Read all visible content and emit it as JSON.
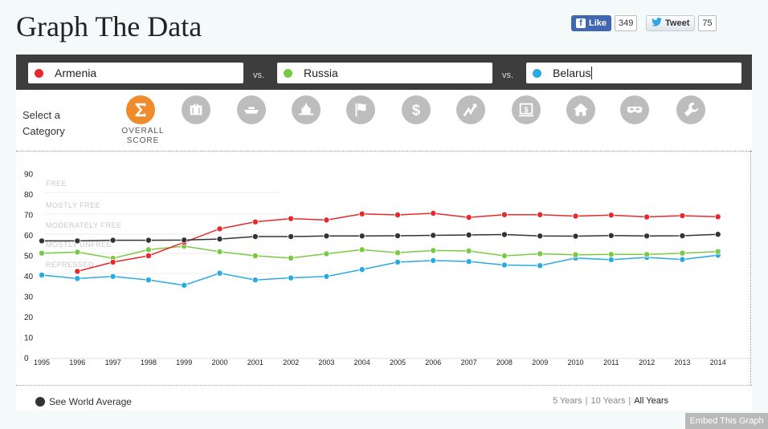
{
  "page_title": "Graph The Data",
  "social": {
    "fb_label": "Like",
    "fb_icon": "f",
    "fb_count": "349",
    "tweet_label": "Tweet",
    "tweet_icon": "bird-icon",
    "tweet_count": "75"
  },
  "compare": {
    "vs_label": "vs.",
    "countries": [
      {
        "name": "Armenia",
        "color": "#e8282b"
      },
      {
        "name": "Russia",
        "color": "#7ac943"
      },
      {
        "name": "Belarus",
        "color": "#29abe2"
      }
    ]
  },
  "categories": {
    "prompt": "Select a Category",
    "items": [
      {
        "icon": "sigma-icon",
        "label": "OVERALL SCORE",
        "active": true
      },
      {
        "icon": "briefcase-icon"
      },
      {
        "icon": "ship-icon"
      },
      {
        "icon": "government-building-icon"
      },
      {
        "icon": "flag-icon"
      },
      {
        "icon": "dollar-icon"
      },
      {
        "icon": "trend-arrow-icon"
      },
      {
        "icon": "bank-icon"
      },
      {
        "icon": "house-icon"
      },
      {
        "icon": "mask-icon"
      },
      {
        "icon": "wrench-icon"
      }
    ],
    "active_color": "#ef8b2c",
    "inactive_color": "#bdbdbd"
  },
  "chart_data": {
    "type": "line",
    "x": [
      1995,
      1996,
      1997,
      1998,
      1999,
      2000,
      2001,
      2002,
      2003,
      2004,
      2005,
      2006,
      2007,
      2008,
      2009,
      2010,
      2011,
      2012,
      2013,
      2014
    ],
    "ylim": [
      0,
      90
    ],
    "yticks": [
      0,
      10,
      20,
      30,
      40,
      50,
      60,
      70,
      80,
      90
    ],
    "bands": [
      "FREE",
      "MOSTLY FREE",
      "MODERATELY FREE",
      "MOSTLY UNFREE",
      "REPRESSED"
    ],
    "series": [
      {
        "name": "Armenia",
        "color": "#e8282b",
        "values": [
          null,
          42.2,
          46.7,
          49.8,
          56.4,
          63.0,
          66.4,
          68.0,
          67.3,
          70.3,
          69.8,
          70.6,
          68.6,
          69.9,
          69.9,
          69.2,
          69.7,
          68.8,
          69.4,
          68.9
        ]
      },
      {
        "name": "Russia",
        "color": "#7ac943",
        "values": [
          51.1,
          51.6,
          48.6,
          52.8,
          54.5,
          51.8,
          49.8,
          48.7,
          50.8,
          52.8,
          51.3,
          52.4,
          52.2,
          49.8,
          50.8,
          50.3,
          50.5,
          50.5,
          51.1,
          51.9
        ]
      },
      {
        "name": "Belarus",
        "color": "#29abe2",
        "values": [
          40.4,
          38.7,
          39.7,
          38.0,
          35.4,
          41.3,
          38.0,
          39.0,
          39.7,
          43.1,
          46.7,
          47.5,
          47.0,
          45.3,
          45.0,
          48.7,
          47.9,
          49.0,
          48.0,
          50.1
        ]
      },
      {
        "name": "World Average",
        "color": "#333333",
        "values": [
          57.1,
          57.1,
          57.4,
          57.4,
          57.5,
          58.0,
          59.2,
          59.2,
          59.5,
          59.5,
          59.6,
          59.8,
          60.0,
          60.2,
          59.5,
          59.4,
          59.7,
          59.5,
          59.6,
          60.3
        ]
      }
    ]
  },
  "footer": {
    "world_avg_label": "See World Average",
    "ranges": [
      "5 Years",
      "10 Years",
      "All Years"
    ],
    "range_separator": "|",
    "active_range": "All Years",
    "embed_label": "Embed This Graph"
  }
}
